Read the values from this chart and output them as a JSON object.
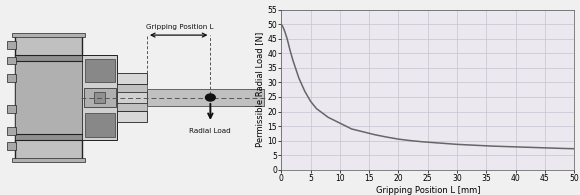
{
  "xlim": [
    0,
    50
  ],
  "ylim": [
    0,
    55
  ],
  "xticks": [
    0,
    5,
    10,
    15,
    20,
    25,
    30,
    35,
    40,
    45,
    50
  ],
  "yticks": [
    0,
    5,
    10,
    15,
    20,
    25,
    30,
    35,
    40,
    45,
    50,
    55
  ],
  "xlabel": "Gripping Position L [mm]",
  "ylabel": "Permissible Radial Load [N]",
  "curve_color": "#666666",
  "grid_color": "#c8c4d0",
  "plot_bg": "#ece8f0",
  "curve_x": [
    0.01,
    0.3,
    0.6,
    1.0,
    1.5,
    2,
    2.5,
    3,
    4,
    5,
    6,
    7,
    8,
    9,
    10,
    12,
    14,
    16,
    18,
    20,
    22,
    24,
    26,
    28,
    30,
    33,
    36,
    39,
    42,
    45,
    48,
    50
  ],
  "curve_y": [
    50,
    49,
    47.5,
    45,
    41,
    37.5,
    34.5,
    31.5,
    27,
    23.5,
    21,
    19.5,
    18,
    17,
    16,
    14,
    13,
    12,
    11.2,
    10.5,
    10.0,
    9.6,
    9.3,
    9.0,
    8.7,
    8.4,
    8.1,
    7.9,
    7.7,
    7.5,
    7.3,
    7.2
  ],
  "label_gripping": "Gripping Position L",
  "label_radial": "Radial Load",
  "fig_bg": "#f0f0f0",
  "dark": "#222222",
  "mid": "#666666",
  "light": "#cccccc",
  "body_fill": "#c0c0c0",
  "body_dark": "#888888",
  "rod_fill": "#c8c8c8",
  "panel_bg": "#f0f0f0"
}
